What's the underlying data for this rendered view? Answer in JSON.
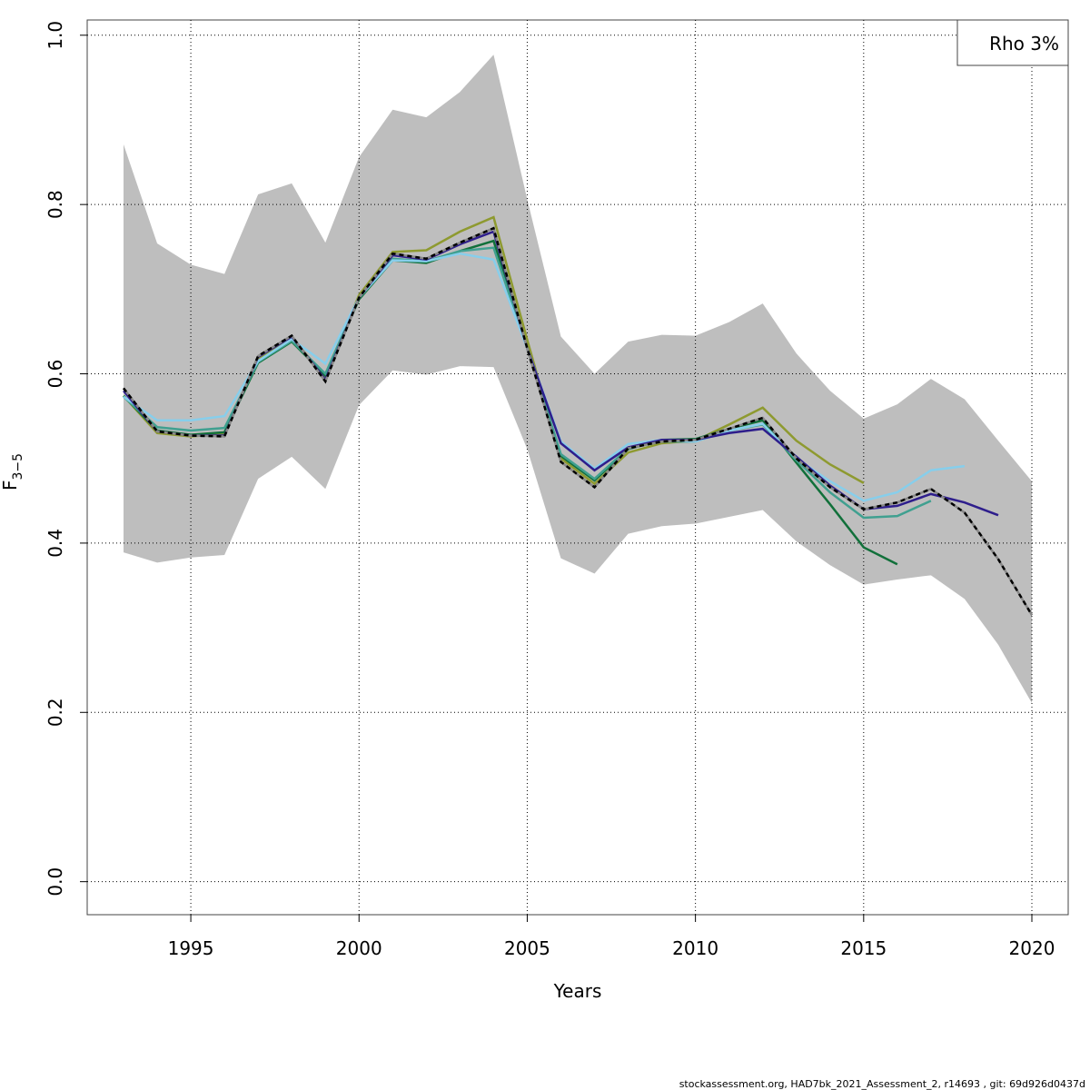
{
  "chart_data": {
    "type": "line",
    "x_label": "Years",
    "y_label": {
      "text": "F",
      "subscript": "3−5"
    },
    "annotation": "Rho 3%",
    "footer": "stockassessment.org, HAD7bk_2021_Assessment_2, r14693 , git: 69d926d0437d",
    "grid": true,
    "x": [
      1993,
      1994,
      1995,
      1996,
      1997,
      1998,
      1999,
      2000,
      2001,
      2002,
      2003,
      2004,
      2005,
      2006,
      2007,
      2008,
      2009,
      2010,
      2011,
      2012,
      2013,
      2014,
      2015,
      2016,
      2017,
      2018,
      2019,
      2020
    ],
    "xlim": [
      1991.92,
      2021.08
    ],
    "xticks": [
      1995,
      2000,
      2005,
      2010,
      2015,
      2020
    ],
    "ylim": [
      -0.039,
      1.018
    ],
    "yticks": [
      {
        "value": 0,
        "label": "0.0"
      },
      {
        "value": 0.2,
        "label": "0.2"
      },
      {
        "value": 0.4,
        "label": "0.4"
      },
      {
        "value": 0.6,
        "label": "0.6"
      },
      {
        "value": 0.8,
        "label": "0.8"
      },
      {
        "value": 1,
        "label": "1.0"
      }
    ],
    "band": {
      "color": "#bebebe",
      "lower": [
        0.389,
        0.377,
        0.383,
        0.386,
        0.476,
        0.502,
        0.464,
        0.563,
        0.604,
        0.599,
        0.609,
        0.608,
        0.511,
        0.382,
        0.364,
        0.411,
        0.42,
        0.423,
        0.431,
        0.439,
        0.402,
        0.374,
        0.351,
        0.357,
        0.362,
        0.334,
        0.28,
        0.211
      ],
      "upper": [
        0.871,
        0.754,
        0.729,
        0.718,
        0.812,
        0.825,
        0.755,
        0.856,
        0.912,
        0.903,
        0.933,
        0.977,
        0.806,
        0.644,
        0.6,
        0.638,
        0.646,
        0.645,
        0.661,
        0.683,
        0.624,
        0.58,
        0.547,
        0.564,
        0.594,
        0.57,
        0.521,
        0.473
      ]
    },
    "series": [
      {
        "color": "#8e9a30",
        "values": [
          0.574,
          0.53,
          0.526,
          0.529,
          0.618,
          0.643,
          0.596,
          0.693,
          0.744,
          0.746,
          0.768,
          0.785,
          0.64,
          0.5,
          0.47,
          0.507,
          0.518,
          0.521,
          0.54,
          0.56,
          0.521,
          0.493,
          0.471,
          null,
          null,
          null,
          null,
          null
        ]
      },
      {
        "color": "#11703a",
        "values": [
          0.574,
          0.533,
          0.528,
          0.531,
          0.613,
          0.638,
          0.598,
          0.688,
          0.734,
          0.731,
          0.745,
          0.757,
          0.63,
          0.503,
          0.474,
          0.511,
          0.522,
          0.523,
          0.535,
          0.545,
          0.495,
          0.446,
          0.395,
          0.375,
          null,
          null,
          null,
          null
        ]
      },
      {
        "color": "#40a090",
        "values": [
          0.573,
          0.537,
          0.533,
          0.536,
          0.614,
          0.639,
          0.6,
          0.69,
          0.736,
          0.733,
          0.745,
          0.749,
          0.63,
          0.505,
          0.476,
          0.512,
          0.52,
          0.52,
          0.533,
          0.54,
          0.498,
          0.46,
          0.43,
          0.432,
          0.45,
          null,
          null,
          null
        ]
      },
      {
        "color": "#87ceeb",
        "values": [
          0.573,
          0.545,
          0.545,
          0.55,
          0.615,
          0.641,
          0.612,
          0.69,
          0.734,
          0.733,
          0.742,
          0.735,
          0.63,
          0.52,
          0.488,
          0.517,
          0.522,
          0.52,
          0.533,
          0.541,
          0.5,
          0.473,
          0.45,
          0.46,
          0.486,
          0.491,
          null,
          null
        ]
      },
      {
        "color": "#2e1e8c",
        "values": [
          0.58,
          0.532,
          0.527,
          0.527,
          0.62,
          0.644,
          0.593,
          0.69,
          0.74,
          0.735,
          0.753,
          0.768,
          0.63,
          0.518,
          0.486,
          0.513,
          0.522,
          0.522,
          0.53,
          0.535,
          0.502,
          0.468,
          0.44,
          0.444,
          0.458,
          0.448,
          0.433,
          null
        ]
      },
      {
        "color": "#000000",
        "dashed": true,
        "values": [
          0.583,
          0.532,
          0.527,
          0.526,
          0.621,
          0.645,
          0.591,
          0.69,
          0.742,
          0.736,
          0.755,
          0.772,
          0.63,
          0.496,
          0.466,
          0.512,
          0.52,
          0.522,
          0.535,
          0.548,
          0.5,
          0.466,
          0.44,
          0.448,
          0.464,
          0.436,
          0.381,
          0.315
        ]
      }
    ]
  }
}
